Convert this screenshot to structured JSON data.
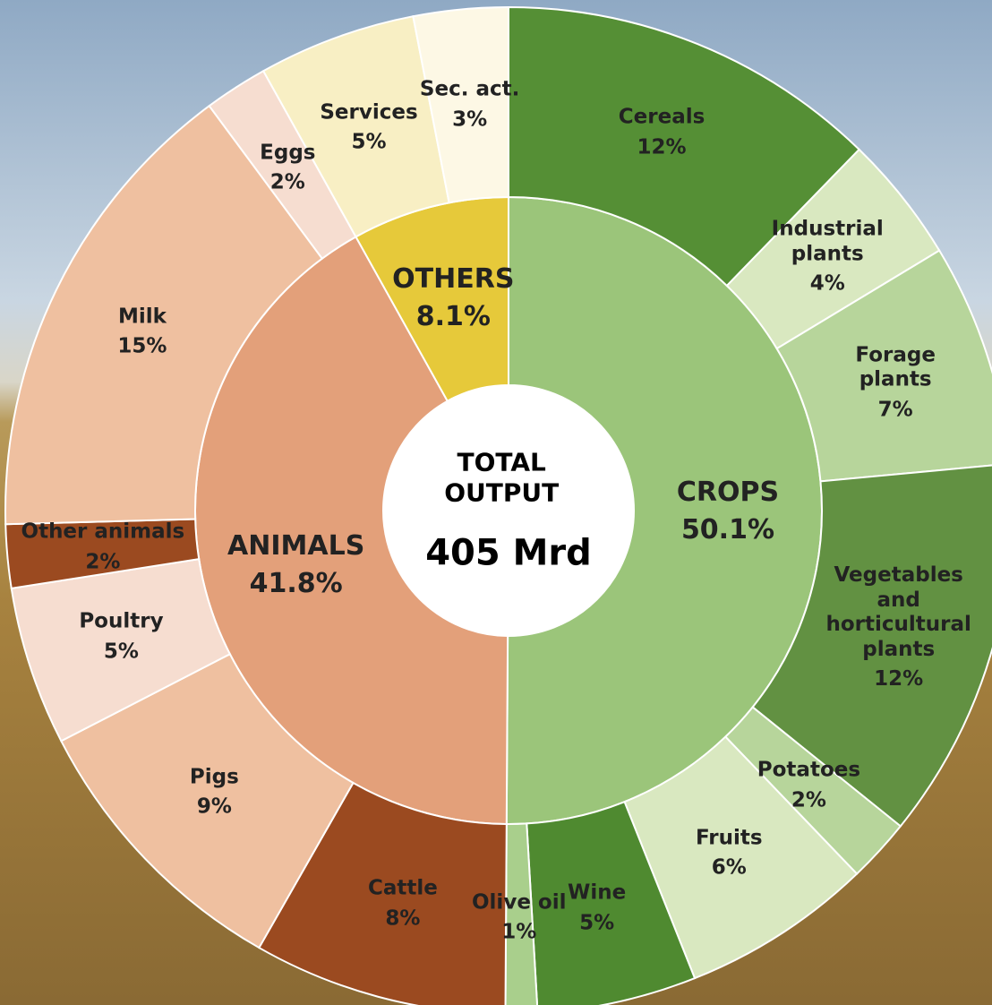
{
  "chart_data": {
    "type": "sunburst",
    "center_title": "TOTAL OUTPUT",
    "total": 405,
    "total_label": "405 Mrd",
    "groups": [
      {
        "name": "CROPS",
        "value": 50.1,
        "value_label": "50.1%",
        "color": "#9bc57a",
        "children": [
          {
            "name": "Cereals",
            "value": 12,
            "value_label": "12%",
            "color": "#558f35"
          },
          {
            "name": "Industrial plants",
            "value": 4,
            "value_label": "4%",
            "color": "#d9e8c0"
          },
          {
            "name": "Forage plants",
            "value": 7,
            "value_label": "7%",
            "color": "#b7d59b"
          },
          {
            "name": "Vegetables and horticultural plants",
            "value": 12,
            "value_label": "12%",
            "color": "#629142"
          },
          {
            "name": "Potatoes",
            "value": 2,
            "value_label": "2%",
            "color": "#b7d59b"
          },
          {
            "name": "Fruits",
            "value": 6,
            "value_label": "6%",
            "color": "#d9e8c0"
          },
          {
            "name": "Wine",
            "value": 5,
            "value_label": "5%",
            "color": "#4f8a30"
          },
          {
            "name": "Olive oil",
            "value": 1,
            "value_label": "1%",
            "color": "#a9cf8c"
          }
        ]
      },
      {
        "name": "ANIMALS",
        "value": 41.8,
        "value_label": "41.8%",
        "color": "#e3a07a",
        "children": [
          {
            "name": "Cattle",
            "value": 8,
            "value_label": "8%",
            "color": "#9b4a20"
          },
          {
            "name": "Pigs",
            "value": 9,
            "value_label": "9%",
            "color": "#efc0a0"
          },
          {
            "name": "Poultry",
            "value": 5,
            "value_label": "5%",
            "color": "#f6ddd0"
          },
          {
            "name": "Other animals",
            "value": 2,
            "value_label": "2%",
            "color": "#9b4a20"
          },
          {
            "name": "Milk",
            "value": 15,
            "value_label": "15%",
            "color": "#efc0a0"
          },
          {
            "name": "Eggs",
            "value": 2,
            "value_label": "2%",
            "color": "#f6ddd0"
          }
        ]
      },
      {
        "name": "OTHERS",
        "value": 8.1,
        "value_label": "8.1%",
        "color": "#e6c93a",
        "children": [
          {
            "name": "Services",
            "value": 5,
            "value_label": "5%",
            "color": "#f8efc4"
          },
          {
            "name": "Sec. act.",
            "value": 3,
            "value_label": "3%",
            "color": "#fdf8e5"
          }
        ]
      }
    ]
  }
}
